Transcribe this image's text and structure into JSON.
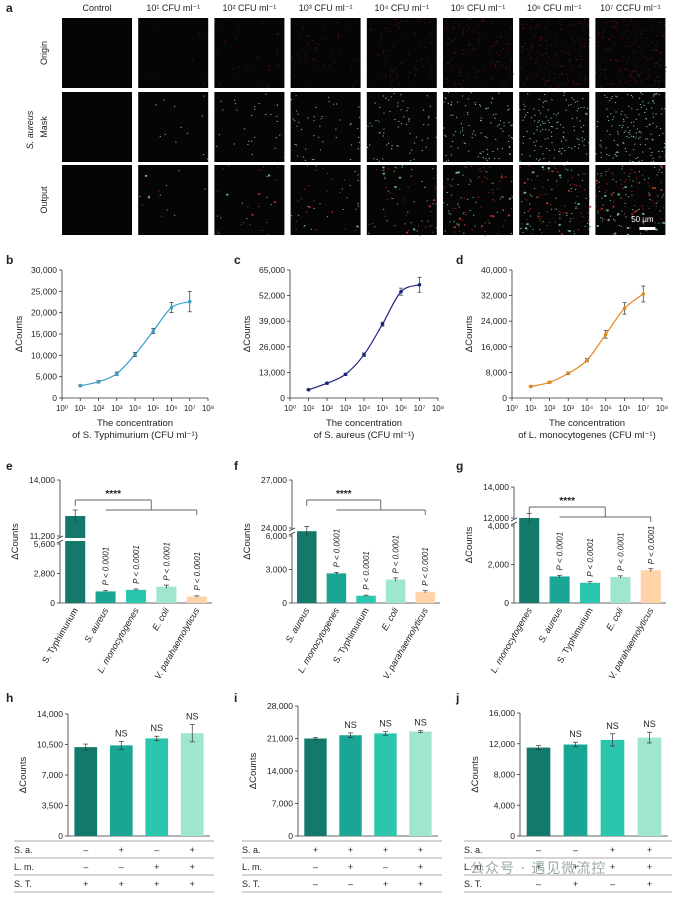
{
  "panel_a": {
    "letter": "a",
    "column_headers": [
      "Control",
      "10¹ CFU ml⁻¹",
      "10² CFU ml⁻¹",
      "10³ CFU ml⁻¹",
      "10⁴ CFU ml⁻¹",
      "10⁵ CFU ml⁻¹",
      "10⁶ CFU ml⁻¹",
      "10⁷ CCFU ml⁻¹"
    ],
    "row_labels": [
      "Origin",
      "Mask",
      "Output"
    ],
    "group_label": "S. aureus",
    "scale_bar": "50 μm",
    "speckle_density": [
      0.0,
      0.08,
      0.18,
      0.28,
      0.42,
      0.65,
      0.82,
      0.95
    ],
    "colors": {
      "origin_speckle": "#8b1a1a",
      "mask_speckle": "#9ee0c8",
      "output_red": "#c0392b",
      "output_green": "#7fe0a8"
    }
  },
  "colors": {
    "st": "#3a9fc9",
    "sa": "#1a237e",
    "lm": "#e08a1e",
    "bar1": "#137a6b",
    "bar2": "#1aa594",
    "bar3": "#2cc5ae",
    "bar4": "#9ee6cf",
    "bar5": "#ffd3a8"
  },
  "chart_data": [
    {
      "id": "b",
      "letter": "b",
      "type": "line",
      "x": [
        10,
        100,
        1000,
        10000,
        100000,
        1000000,
        10000000
      ],
      "y": [
        2900,
        3800,
        5700,
        10200,
        15700,
        21200,
        22600
      ],
      "err": [
        200,
        300,
        400,
        500,
        600,
        1200,
        2400
      ],
      "xlim": [
        1,
        100000000
      ],
      "xlog": true,
      "ylim": [
        0,
        30000
      ],
      "yticks": [
        "0",
        "5,000",
        "10,000",
        "15,000",
        "20,000",
        "25,000",
        "30,000"
      ],
      "xticks": [
        "10⁰",
        "10¹",
        "10²",
        "10³",
        "10⁴",
        "10⁵",
        "10⁶",
        "10⁷",
        "10⁸"
      ],
      "ylabel": "ΔCounts",
      "xlabel_1": "The concentration",
      "xlabel_2": "of S. Typhimurium (CFU ml⁻¹)"
    },
    {
      "id": "c",
      "letter": "c",
      "type": "line",
      "x": [
        10,
        100,
        1000,
        10000,
        100000,
        1000000,
        10000000
      ],
      "y": [
        4200,
        7500,
        12000,
        22000,
        37500,
        54000,
        57500
      ],
      "err": [
        300,
        400,
        600,
        900,
        1000,
        1800,
        3800
      ],
      "xlim": [
        1,
        100000000
      ],
      "xlog": true,
      "ylim": [
        0,
        65000
      ],
      "yticks": [
        "0",
        "13,000",
        "26,000",
        "39,000",
        "52,000",
        "65,000"
      ],
      "xticks": [
        "10⁰",
        "10¹",
        "10²",
        "10³",
        "10⁴",
        "10⁵",
        "10⁶",
        "10⁷",
        "10⁸"
      ],
      "ylabel": "ΔCounts",
      "xlabel_1": "The concentration",
      "xlabel_2": "of S. aureus (CFU ml⁻¹)"
    },
    {
      "id": "d",
      "letter": "d",
      "type": "line",
      "x": [
        10,
        100,
        1000,
        10000,
        100000,
        1000000,
        10000000
      ],
      "y": [
        3600,
        4900,
        7700,
        11800,
        19900,
        28000,
        32500
      ],
      "err": [
        200,
        300,
        400,
        500,
        1200,
        1800,
        2500
      ],
      "xlim": [
        1,
        100000000
      ],
      "xlog": true,
      "ylim": [
        0,
        40000
      ],
      "yticks": [
        "0",
        "8,000",
        "16,000",
        "24,000",
        "32,000",
        "40,000"
      ],
      "xticks": [
        "10⁰",
        "10¹",
        "10²",
        "10³",
        "10⁴",
        "10⁵",
        "10⁶",
        "10⁷",
        "10⁸"
      ],
      "ylabel": "ΔCounts",
      "xlabel_1": "The concentration",
      "xlabel_2": "of L. monocytogenes (CFU ml⁻¹)"
    },
    {
      "id": "e",
      "letter": "e",
      "type": "bar",
      "categories": [
        "S. Typhimurium",
        "S. aureus",
        "L. monocytogenes",
        "E. coli",
        "V. parahaemolyticus"
      ],
      "values": [
        12200,
        1100,
        1250,
        1550,
        620
      ],
      "err": [
        300,
        80,
        80,
        150,
        60
      ],
      "pvalues": [
        "",
        "P < 0.0001",
        "P < 0.0001",
        "P < 0.0001",
        "P < 0.0001"
      ],
      "yticks": [
        "0",
        "2,800",
        "5,600",
        "11,200",
        "14,000"
      ],
      "ylim": [
        0,
        14000
      ],
      "ylabel": "ΔCounts",
      "significance": "****"
    },
    {
      "id": "f",
      "letter": "f",
      "type": "bar",
      "categories": [
        "S. aureus",
        "L. monocytogenes",
        "S. Typhimurium",
        "E. coli",
        "V. parahaemolyticus"
      ],
      "values": [
        23800,
        2650,
        650,
        2100,
        1000
      ],
      "err": [
        300,
        100,
        50,
        150,
        100
      ],
      "pvalues": [
        "",
        "P < 0.0001",
        "P < 0.0001",
        "P < 0.0001",
        "P < 0.0001"
      ],
      "yticks": [
        "0",
        "3,000",
        "6,000",
        "24,000",
        "27,000"
      ],
      "ylim": [
        0,
        27000
      ],
      "ylabel": "ΔCounts",
      "significance": "****"
    },
    {
      "id": "g",
      "letter": "g",
      "type": "bar",
      "categories": [
        "L. monocytogenes",
        "S. aureus",
        "S. Typhimurium",
        "E. coli",
        "V. parahaemolyticus"
      ],
      "values": [
        12000,
        1380,
        1050,
        1350,
        1700
      ],
      "err": [
        300,
        60,
        60,
        60,
        80
      ],
      "pvalues": [
        "",
        "P < 0.0001",
        "P < 0.0001",
        "P < 0.0001",
        "P < 0.0001"
      ],
      "yticks": [
        "0",
        "2,000",
        "4,000",
        "12,000",
        "14,000"
      ],
      "ylim": [
        0,
        14000
      ],
      "ylabel": "ΔCounts",
      "significance": "****"
    },
    {
      "id": "h",
      "letter": "h",
      "type": "bar",
      "values": [
        10200,
        10400,
        11200,
        11800
      ],
      "err": [
        350,
        450,
        250,
        1000
      ],
      "labels": [
        "",
        "NS",
        "NS",
        "NS"
      ],
      "ylim": [
        0,
        14000
      ],
      "yticks": [
        "0",
        "3,500",
        "7,000",
        "10,500",
        "14,000"
      ],
      "ylabel": "ΔCounts",
      "table": [
        {
          "row": "S. a.",
          "cells": [
            "–",
            "+",
            "–",
            "+"
          ]
        },
        {
          "row": "L. m.",
          "cells": [
            "–",
            "–",
            "+",
            "+"
          ]
        },
        {
          "row": "S. T.",
          "cells": [
            "+",
            "+",
            "+",
            "+"
          ]
        }
      ]
    },
    {
      "id": "i",
      "letter": "i",
      "type": "bar",
      "values": [
        21000,
        21700,
        22100,
        22500
      ],
      "err": [
        200,
        500,
        400,
        200
      ],
      "labels": [
        "",
        "NS",
        "NS",
        "NS"
      ],
      "ylim": [
        0,
        28000
      ],
      "yticks": [
        "0",
        "7,000",
        "14,000",
        "21,000",
        "28,000"
      ],
      "ylabel": "ΔCounts",
      "table": [
        {
          "row": "S. a.",
          "cells": [
            "+",
            "+",
            "+",
            "+"
          ]
        },
        {
          "row": "L. m.",
          "cells": [
            "–",
            "+",
            "–",
            "+"
          ]
        },
        {
          "row": "S. T.",
          "cells": [
            "–",
            "–",
            "+",
            "+"
          ]
        }
      ]
    },
    {
      "id": "j",
      "letter": "j",
      "type": "bar",
      "values": [
        11500,
        11900,
        12500,
        12800
      ],
      "err": [
        250,
        300,
        800,
        700
      ],
      "labels": [
        "",
        "NS",
        "NS",
        "NS"
      ],
      "ylim": [
        0,
        16000
      ],
      "yticks": [
        "0",
        "4,000",
        "8,000",
        "12,000",
        "16,000"
      ],
      "ylabel": "ΔCounts",
      "table": [
        {
          "row": "S. a.",
          "cells": [
            "–",
            "–",
            "+",
            "+"
          ]
        },
        {
          "row": "L. m.",
          "cells": [
            "+",
            "+",
            "+",
            "+"
          ]
        },
        {
          "row": "S. T.",
          "cells": [
            "–",
            "+",
            "–",
            "+"
          ]
        }
      ]
    }
  ],
  "watermark": "公众号 · 遇见微流控"
}
